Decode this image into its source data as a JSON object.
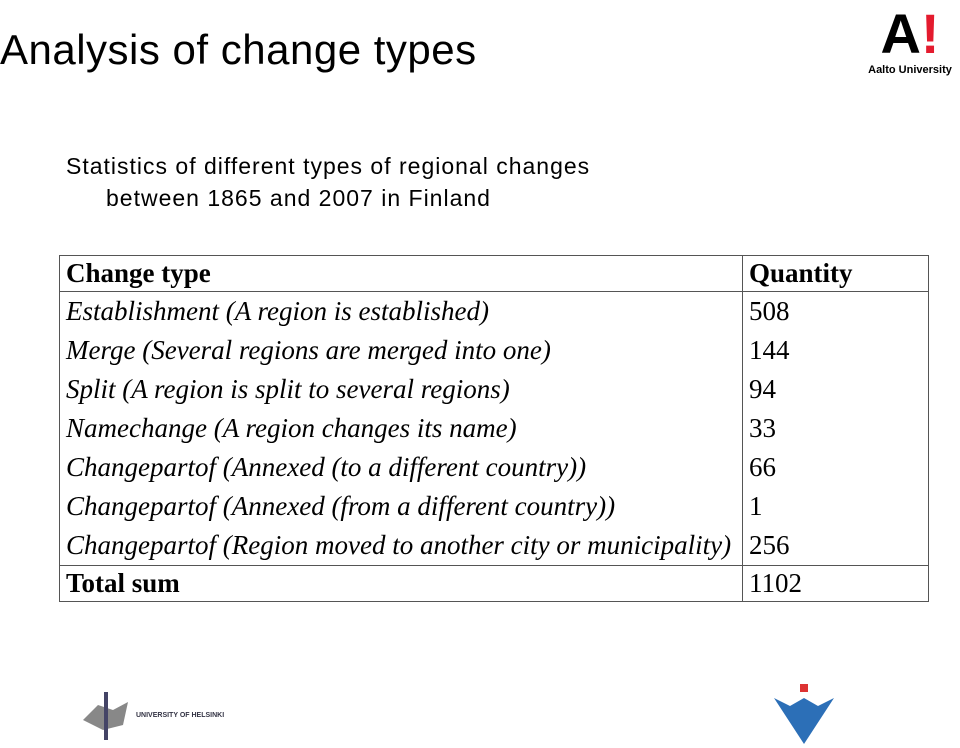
{
  "header": {
    "title": "Analysis of change types",
    "logo": "Aalto University"
  },
  "subtitle": {
    "line1": "Statistics of different types of regional changes",
    "line2": "between 1865 and 2007 in Finland"
  },
  "table": {
    "columns": [
      "Change type",
      "Quantity"
    ],
    "rows": [
      [
        "Establishment (A region is established)",
        "508"
      ],
      [
        "Merge (Several regions are merged into one)",
        "144"
      ],
      [
        "Split (A region is split to several regions)",
        "94"
      ],
      [
        "Namechange (A region changes its name)",
        "33"
      ],
      [
        "Changepartof (Annexed (to a different country))",
        "66"
      ],
      [
        "Changepartof (Annexed (from a different country))",
        "1"
      ],
      [
        "Changepartof (Region moved to another city or municipality)",
        "256"
      ]
    ],
    "total": [
      "Total sum",
      "1102"
    ]
  },
  "footer": {
    "left_logo": "UNIVERSITY OF HELSINKI"
  }
}
